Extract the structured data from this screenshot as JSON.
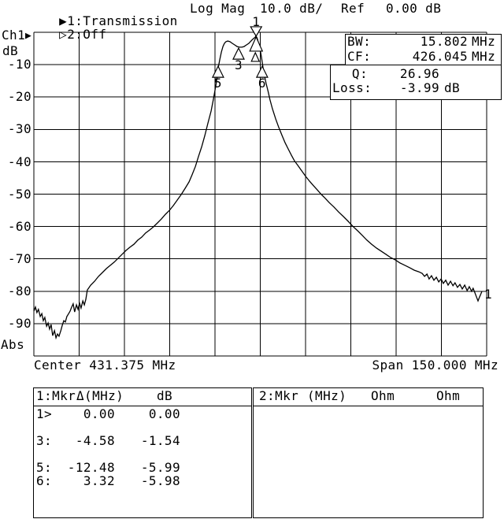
{
  "header": {
    "trace1": {
      "arrow": "▶",
      "label": "1:Transmission"
    },
    "trace2": {
      "arrow": "▷",
      "label": "2:Off"
    },
    "format": "Log Mag",
    "scale": "10.0 dB/",
    "ref_label": "Ref",
    "ref_value": "0.00 dB"
  },
  "axis": {
    "channel": "Ch1",
    "channel_arrow": "▶",
    "unit": "dB",
    "bottom_label": "Abs",
    "y_ticks": [
      "-10",
      "-20",
      "-30",
      "-40",
      "-50",
      "-60",
      "-70",
      "-80",
      "-90"
    ],
    "center": "Center 431.375 MHz",
    "span": "Span 150.000 MHz"
  },
  "measurements": {
    "rows": [
      {
        "label": "BW:",
        "value": "15.802",
        "unit": "MHz"
      },
      {
        "label": "CF:",
        "value": "426.045",
        "unit": "MHz"
      },
      {
        "label": "Q:",
        "value": "26.96",
        "unit": ""
      },
      {
        "label": "Loss:",
        "value": "-3.99",
        "unit": "dB"
      }
    ]
  },
  "marker_table": {
    "title": "1:Mkr",
    "delta_header": "Δ(MHz)",
    "db_header": "dB",
    "rows": [
      {
        "label": "1>",
        "delta": "0.00",
        "db": "0.00"
      },
      {
        "label": "3:",
        "delta": "-4.58",
        "db": "-1.54"
      },
      {
        "label": "5:",
        "delta": "-12.48",
        "db": "-5.99"
      },
      {
        "label": "6:",
        "delta": "3.32",
        "db": "-5.98"
      }
    ]
  },
  "marker_table2": {
    "title": "2:Mkr",
    "freq_header": "(MHz)",
    "col1": "Ohm",
    "col2": "Ohm"
  },
  "trace_end_label": "1",
  "chart_data": {
    "type": "line",
    "title": "1:Transmission Log Mag 10.0 dB/ Ref 0.00 dB",
    "xlabel": "Frequency (MHz) — Center 431.375 MHz, Span 150.000 MHz",
    "ylabel": "dB",
    "xlim": [
      356.375,
      506.375
    ],
    "ylim": [
      -100,
      0
    ],
    "x_div_mhz": 15.0,
    "y_div_db": 10.0,
    "grid": true,
    "measurements": {
      "BW_MHz": 15.802,
      "CF_MHz": 426.045,
      "Q": 26.96,
      "Loss_dB": -3.99
    },
    "markers": [
      {
        "marker": "1",
        "delta_mhz": 0.0,
        "delta_db": 0.0,
        "role": "delta-reference"
      },
      {
        "marker": "3",
        "delta_mhz": -4.58,
        "delta_db": -1.54,
        "role": "center-frequency"
      },
      {
        "marker": "5",
        "delta_mhz": -12.48,
        "delta_db": -5.99,
        "role": "lower-band-edge"
      },
      {
        "marker": "6",
        "delta_mhz": 3.32,
        "delta_db": -5.98,
        "role": "upper-band-edge"
      }
    ],
    "marker_glyphs": [
      {
        "label": "1",
        "f": 430.0,
        "db": -1.2,
        "dir": "down",
        "active": true
      },
      {
        "label": "3",
        "f": 424.2,
        "db": -4.9,
        "dir": "up"
      },
      {
        "label": "5",
        "f": 417.4,
        "db": -10.5,
        "dir": "up"
      },
      {
        "label": "6",
        "f": 432.0,
        "db": -10.5,
        "dir": "up"
      }
    ],
    "series": [
      {
        "name": "Ch1 Transmission Log Mag",
        "points": [
          [
            356.4,
            -86.1
          ],
          [
            356.9,
            -84.9
          ],
          [
            357.4,
            -86.6
          ],
          [
            357.9,
            -85.6
          ],
          [
            358.5,
            -87.8
          ],
          [
            359.0,
            -86.9
          ],
          [
            359.5,
            -89.1
          ],
          [
            360.0,
            -88.1
          ],
          [
            360.6,
            -90.8
          ],
          [
            361.1,
            -89.8
          ],
          [
            361.6,
            -91.7
          ],
          [
            362.1,
            -90.3
          ],
          [
            362.6,
            -93.7
          ],
          [
            363.2,
            -92.2
          ],
          [
            363.7,
            -94.4
          ],
          [
            364.2,
            -93.2
          ],
          [
            364.7,
            -93.9
          ],
          [
            365.3,
            -92.2
          ],
          [
            365.8,
            -90.5
          ],
          [
            366.3,
            -89.1
          ],
          [
            366.8,
            -89.5
          ],
          [
            367.3,
            -87.8
          ],
          [
            367.9,
            -86.9
          ],
          [
            368.4,
            -86.1
          ],
          [
            368.9,
            -84.9
          ],
          [
            369.4,
            -83.9
          ],
          [
            369.9,
            -86.4
          ],
          [
            370.5,
            -84.2
          ],
          [
            371.0,
            -85.6
          ],
          [
            371.5,
            -83.7
          ],
          [
            372.0,
            -85.2
          ],
          [
            372.6,
            -83.0
          ],
          [
            373.1,
            -84.2
          ],
          [
            373.6,
            -82.5
          ],
          [
            374.1,
            -79.6
          ],
          [
            375.2,
            -78.1
          ],
          [
            376.5,
            -76.9
          ],
          [
            377.8,
            -75.4
          ],
          [
            379.1,
            -74.2
          ],
          [
            380.4,
            -73.0
          ],
          [
            381.7,
            -72.0
          ],
          [
            383.0,
            -71.0
          ],
          [
            384.3,
            -69.8
          ],
          [
            385.6,
            -68.6
          ],
          [
            386.9,
            -67.4
          ],
          [
            388.2,
            -66.4
          ],
          [
            389.5,
            -65.5
          ],
          [
            390.8,
            -64.2
          ],
          [
            392.1,
            -63.3
          ],
          [
            393.4,
            -62.0
          ],
          [
            394.7,
            -61.1
          ],
          [
            396.0,
            -60.1
          ],
          [
            397.3,
            -58.9
          ],
          [
            398.6,
            -57.7
          ],
          [
            400.0,
            -56.2
          ],
          [
            401.3,
            -55.0
          ],
          [
            402.6,
            -53.5
          ],
          [
            403.9,
            -51.8
          ],
          [
            405.2,
            -50.1
          ],
          [
            406.5,
            -48.2
          ],
          [
            407.8,
            -46.2
          ],
          [
            408.8,
            -44.0
          ],
          [
            409.9,
            -41.4
          ],
          [
            410.9,
            -38.4
          ],
          [
            412.0,
            -35.3
          ],
          [
            413.0,
            -31.9
          ],
          [
            414.0,
            -28.2
          ],
          [
            415.1,
            -24.3
          ],
          [
            415.9,
            -20.4
          ],
          [
            416.7,
            -16.3
          ],
          [
            417.2,
            -13.1
          ],
          [
            417.4,
            -11.2
          ],
          [
            418.0,
            -8.3
          ],
          [
            418.5,
            -6.1
          ],
          [
            419.0,
            -4.4
          ],
          [
            419.5,
            -3.4
          ],
          [
            420.0,
            -2.9
          ],
          [
            420.6,
            -2.7
          ],
          [
            421.3,
            -2.9
          ],
          [
            422.1,
            -3.4
          ],
          [
            422.9,
            -3.9
          ],
          [
            423.7,
            -4.4
          ],
          [
            424.5,
            -4.6
          ],
          [
            425.3,
            -4.6
          ],
          [
            426.0,
            -4.4
          ],
          [
            426.8,
            -3.9
          ],
          [
            427.6,
            -3.4
          ],
          [
            428.1,
            -2.9
          ],
          [
            428.6,
            -2.4
          ],
          [
            429.2,
            -1.9
          ],
          [
            429.7,
            -1.5
          ],
          [
            429.9,
            -1.2
          ],
          [
            430.2,
            -1.5
          ],
          [
            430.5,
            -2.2
          ],
          [
            430.7,
            -3.2
          ],
          [
            431.3,
            -5.1
          ],
          [
            431.8,
            -7.8
          ],
          [
            432.3,
            -10.9
          ],
          [
            432.8,
            -13.6
          ],
          [
            433.3,
            -15.8
          ],
          [
            433.9,
            -18.0
          ],
          [
            434.6,
            -20.9
          ],
          [
            435.4,
            -23.6
          ],
          [
            436.5,
            -26.8
          ],
          [
            437.5,
            -29.4
          ],
          [
            438.6,
            -31.9
          ],
          [
            439.6,
            -34.1
          ],
          [
            440.6,
            -36.0
          ],
          [
            441.7,
            -38.0
          ],
          [
            442.7,
            -39.7
          ],
          [
            443.8,
            -41.1
          ],
          [
            445.1,
            -42.8
          ],
          [
            446.4,
            -44.5
          ],
          [
            447.7,
            -46.0
          ],
          [
            449.0,
            -47.4
          ],
          [
            450.3,
            -48.7
          ],
          [
            451.6,
            -50.1
          ],
          [
            452.9,
            -51.3
          ],
          [
            454.2,
            -52.6
          ],
          [
            455.8,
            -54.0
          ],
          [
            457.3,
            -55.5
          ],
          [
            458.9,
            -56.9
          ],
          [
            460.5,
            -58.4
          ],
          [
            462.0,
            -59.9
          ],
          [
            463.6,
            -61.3
          ],
          [
            465.2,
            -62.8
          ],
          [
            466.7,
            -64.2
          ],
          [
            468.3,
            -65.5
          ],
          [
            469.9,
            -66.7
          ],
          [
            471.4,
            -67.6
          ],
          [
            473.0,
            -68.6
          ],
          [
            474.6,
            -69.6
          ],
          [
            476.1,
            -70.3
          ],
          [
            477.7,
            -71.3
          ],
          [
            479.3,
            -72.0
          ],
          [
            480.8,
            -72.7
          ],
          [
            482.4,
            -73.5
          ],
          [
            483.9,
            -74.0
          ],
          [
            485.0,
            -74.5
          ],
          [
            485.8,
            -75.4
          ],
          [
            486.6,
            -74.7
          ],
          [
            487.3,
            -76.2
          ],
          [
            488.1,
            -75.2
          ],
          [
            488.9,
            -76.6
          ],
          [
            489.7,
            -75.7
          ],
          [
            490.5,
            -77.1
          ],
          [
            491.3,
            -76.2
          ],
          [
            492.0,
            -77.6
          ],
          [
            492.8,
            -76.6
          ],
          [
            493.6,
            -78.1
          ],
          [
            494.4,
            -76.9
          ],
          [
            495.2,
            -78.3
          ],
          [
            495.9,
            -77.4
          ],
          [
            496.7,
            -78.8
          ],
          [
            497.5,
            -77.9
          ],
          [
            498.3,
            -79.3
          ],
          [
            499.1,
            -78.1
          ],
          [
            499.9,
            -79.8
          ],
          [
            500.6,
            -78.6
          ],
          [
            501.4,
            -80.0
          ],
          [
            501.9,
            -79.1
          ],
          [
            502.5,
            -80.5
          ],
          [
            503.0,
            -81.8
          ],
          [
            503.5,
            -83.0
          ],
          [
            504.0,
            -81.8
          ],
          [
            504.6,
            -80.5
          ],
          [
            504.8,
            -80.0
          ]
        ]
      }
    ]
  }
}
